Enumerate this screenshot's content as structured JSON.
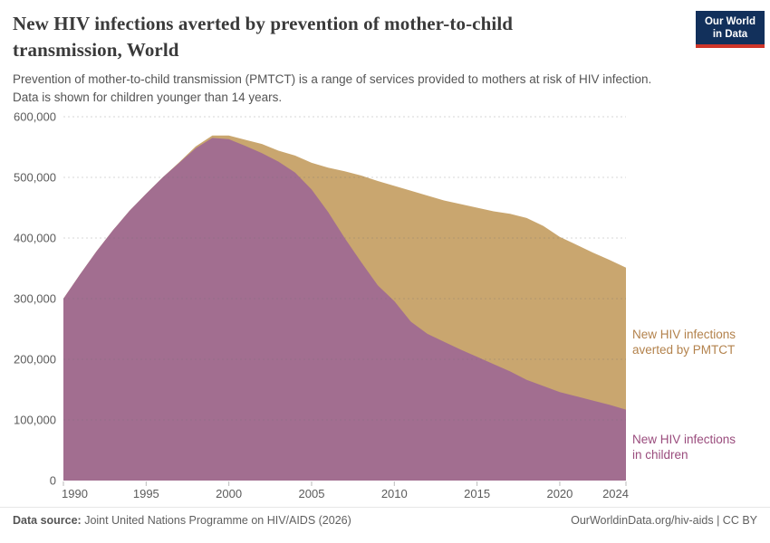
{
  "header": {
    "title": "New HIV infections averted by prevention of mother-to-child transmission, World",
    "subtitle_line1": "Prevention of mother-to-child transmission (PMTCT) is a range of services provided to mothers at risk of HIV infection.",
    "subtitle_line2": "Data is shown for children younger than 14 years.",
    "logo_line1": "Our World",
    "logo_line2": "in Data"
  },
  "chart_data": {
    "type": "area",
    "stacked": true,
    "title": "New HIV infections averted by prevention of mother-to-child transmission, World",
    "x": [
      1990,
      1991,
      1992,
      1993,
      1994,
      1995,
      1996,
      1997,
      1998,
      1999,
      2000,
      2001,
      2002,
      2003,
      2004,
      2005,
      2006,
      2007,
      2008,
      2009,
      2010,
      2011,
      2012,
      2013,
      2014,
      2015,
      2016,
      2017,
      2018,
      2019,
      2020,
      2021,
      2022,
      2023,
      2024
    ],
    "series": [
      {
        "name": "New HIV infections in children",
        "color": "#a26e90",
        "label_color": "#9a4c7d",
        "values": [
          300000,
          340000,
          378000,
          413000,
          445000,
          473000,
          500000,
          524000,
          548000,
          565000,
          563000,
          552000,
          540000,
          526000,
          508000,
          480000,
          443000,
          400000,
          360000,
          322000,
          296000,
          262000,
          242000,
          229000,
          216000,
          204000,
          192000,
          180000,
          166000,
          156000,
          146000,
          139000,
          132000,
          125000,
          117000
        ]
      },
      {
        "name": "New HIV infections averted by PMTCT",
        "color": "#c9a66f",
        "label_color": "#b3824c",
        "values": [
          0,
          0,
          0,
          0,
          0,
          0,
          0,
          1000,
          3000,
          4000,
          6000,
          10000,
          15000,
          18000,
          28000,
          44000,
          73000,
          110000,
          143000,
          172000,
          190000,
          216000,
          228000,
          233000,
          240000,
          246000,
          252000,
          260000,
          267000,
          264000,
          256000,
          250000,
          244000,
          239000,
          234000
        ]
      }
    ],
    "ylim": [
      0,
      600000
    ],
    "y_ticks": [
      0,
      100000,
      200000,
      300000,
      400000,
      500000,
      600000
    ],
    "y_tick_labels": [
      "0",
      "100,000",
      "200,000",
      "300,000",
      "400,000",
      "500,000",
      "600,000"
    ],
    "x_ticks": [
      1990,
      1995,
      2000,
      2005,
      2010,
      2015,
      2020,
      2024
    ],
    "x_tick_labels": [
      "1990",
      "1995",
      "2000",
      "2005",
      "2010",
      "2015",
      "2020",
      "2024"
    ],
    "grid": "horizontal-dashed",
    "legend_position": "right-of-plot"
  },
  "legend": {
    "averted_line1": "New HIV infections",
    "averted_line2": "averted by PMTCT",
    "children_line1": "New HIV infections",
    "children_line2": "in children"
  },
  "footer": {
    "source_label": "Data source:",
    "source_text": " Joint United Nations Programme on HIV/AIDS (2026)",
    "credit": "OurWorldinData.org/hiv-aids | CC BY"
  },
  "colors": {
    "children_area": "#a26e90",
    "averted_area": "#c9a66f",
    "grid": "#6e6e6e",
    "axis_text": "#5b5b5b",
    "logo_bg": "#12305b",
    "logo_red": "#cf3529",
    "title_text": "#3a3a3a"
  }
}
